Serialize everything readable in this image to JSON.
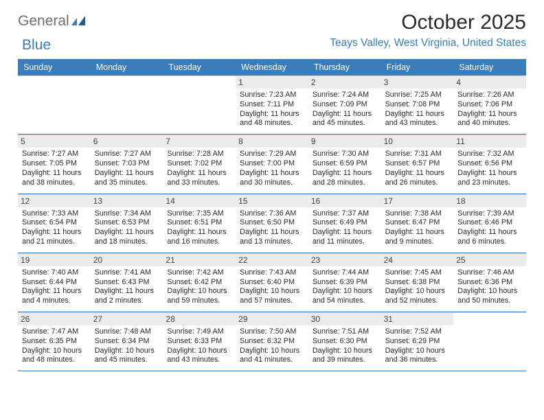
{
  "brand": {
    "text1": "General",
    "text2": "Blue"
  },
  "title": "October 2025",
  "location": "Teays Valley, West Virginia, United States",
  "colors": {
    "accent": "#3a7db8",
    "header_text": "#ffffff",
    "grid_border": "#3a7db8",
    "cell_sep": "#cfcfcf",
    "daynum_bg": "#ececec",
    "body_text": "#2a2a2a",
    "logo_gray": "#6f6f6f"
  },
  "day_names": [
    "Sunday",
    "Monday",
    "Tuesday",
    "Wednesday",
    "Thursday",
    "Friday",
    "Saturday"
  ],
  "weeks": [
    [
      null,
      null,
      null,
      {
        "n": "1",
        "sr": "Sunrise: 7:23 AM",
        "ss": "Sunset: 7:11 PM",
        "d1": "Daylight: 11 hours",
        "d2": "and 48 minutes."
      },
      {
        "n": "2",
        "sr": "Sunrise: 7:24 AM",
        "ss": "Sunset: 7:09 PM",
        "d1": "Daylight: 11 hours",
        "d2": "and 45 minutes."
      },
      {
        "n": "3",
        "sr": "Sunrise: 7:25 AM",
        "ss": "Sunset: 7:08 PM",
        "d1": "Daylight: 11 hours",
        "d2": "and 43 minutes."
      },
      {
        "n": "4",
        "sr": "Sunrise: 7:26 AM",
        "ss": "Sunset: 7:06 PM",
        "d1": "Daylight: 11 hours",
        "d2": "and 40 minutes."
      }
    ],
    [
      {
        "n": "5",
        "sr": "Sunrise: 7:27 AM",
        "ss": "Sunset: 7:05 PM",
        "d1": "Daylight: 11 hours",
        "d2": "and 38 minutes."
      },
      {
        "n": "6",
        "sr": "Sunrise: 7:27 AM",
        "ss": "Sunset: 7:03 PM",
        "d1": "Daylight: 11 hours",
        "d2": "and 35 minutes."
      },
      {
        "n": "7",
        "sr": "Sunrise: 7:28 AM",
        "ss": "Sunset: 7:02 PM",
        "d1": "Daylight: 11 hours",
        "d2": "and 33 minutes."
      },
      {
        "n": "8",
        "sr": "Sunrise: 7:29 AM",
        "ss": "Sunset: 7:00 PM",
        "d1": "Daylight: 11 hours",
        "d2": "and 30 minutes."
      },
      {
        "n": "9",
        "sr": "Sunrise: 7:30 AM",
        "ss": "Sunset: 6:59 PM",
        "d1": "Daylight: 11 hours",
        "d2": "and 28 minutes."
      },
      {
        "n": "10",
        "sr": "Sunrise: 7:31 AM",
        "ss": "Sunset: 6:57 PM",
        "d1": "Daylight: 11 hours",
        "d2": "and 26 minutes."
      },
      {
        "n": "11",
        "sr": "Sunrise: 7:32 AM",
        "ss": "Sunset: 6:56 PM",
        "d1": "Daylight: 11 hours",
        "d2": "and 23 minutes."
      }
    ],
    [
      {
        "n": "12",
        "sr": "Sunrise: 7:33 AM",
        "ss": "Sunset: 6:54 PM",
        "d1": "Daylight: 11 hours",
        "d2": "and 21 minutes."
      },
      {
        "n": "13",
        "sr": "Sunrise: 7:34 AM",
        "ss": "Sunset: 6:53 PM",
        "d1": "Daylight: 11 hours",
        "d2": "and 18 minutes."
      },
      {
        "n": "14",
        "sr": "Sunrise: 7:35 AM",
        "ss": "Sunset: 6:51 PM",
        "d1": "Daylight: 11 hours",
        "d2": "and 16 minutes."
      },
      {
        "n": "15",
        "sr": "Sunrise: 7:36 AM",
        "ss": "Sunset: 6:50 PM",
        "d1": "Daylight: 11 hours",
        "d2": "and 13 minutes."
      },
      {
        "n": "16",
        "sr": "Sunrise: 7:37 AM",
        "ss": "Sunset: 6:49 PM",
        "d1": "Daylight: 11 hours",
        "d2": "and 11 minutes."
      },
      {
        "n": "17",
        "sr": "Sunrise: 7:38 AM",
        "ss": "Sunset: 6:47 PM",
        "d1": "Daylight: 11 hours",
        "d2": "and 9 minutes."
      },
      {
        "n": "18",
        "sr": "Sunrise: 7:39 AM",
        "ss": "Sunset: 6:46 PM",
        "d1": "Daylight: 11 hours",
        "d2": "and 6 minutes."
      }
    ],
    [
      {
        "n": "19",
        "sr": "Sunrise: 7:40 AM",
        "ss": "Sunset: 6:44 PM",
        "d1": "Daylight: 11 hours",
        "d2": "and 4 minutes."
      },
      {
        "n": "20",
        "sr": "Sunrise: 7:41 AM",
        "ss": "Sunset: 6:43 PM",
        "d1": "Daylight: 11 hours",
        "d2": "and 2 minutes."
      },
      {
        "n": "21",
        "sr": "Sunrise: 7:42 AM",
        "ss": "Sunset: 6:42 PM",
        "d1": "Daylight: 10 hours",
        "d2": "and 59 minutes."
      },
      {
        "n": "22",
        "sr": "Sunrise: 7:43 AM",
        "ss": "Sunset: 6:40 PM",
        "d1": "Daylight: 10 hours",
        "d2": "and 57 minutes."
      },
      {
        "n": "23",
        "sr": "Sunrise: 7:44 AM",
        "ss": "Sunset: 6:39 PM",
        "d1": "Daylight: 10 hours",
        "d2": "and 54 minutes."
      },
      {
        "n": "24",
        "sr": "Sunrise: 7:45 AM",
        "ss": "Sunset: 6:38 PM",
        "d1": "Daylight: 10 hours",
        "d2": "and 52 minutes."
      },
      {
        "n": "25",
        "sr": "Sunrise: 7:46 AM",
        "ss": "Sunset: 6:36 PM",
        "d1": "Daylight: 10 hours",
        "d2": "and 50 minutes."
      }
    ],
    [
      {
        "n": "26",
        "sr": "Sunrise: 7:47 AM",
        "ss": "Sunset: 6:35 PM",
        "d1": "Daylight: 10 hours",
        "d2": "and 48 minutes."
      },
      {
        "n": "27",
        "sr": "Sunrise: 7:48 AM",
        "ss": "Sunset: 6:34 PM",
        "d1": "Daylight: 10 hours",
        "d2": "and 45 minutes."
      },
      {
        "n": "28",
        "sr": "Sunrise: 7:49 AM",
        "ss": "Sunset: 6:33 PM",
        "d1": "Daylight: 10 hours",
        "d2": "and 43 minutes."
      },
      {
        "n": "29",
        "sr": "Sunrise: 7:50 AM",
        "ss": "Sunset: 6:32 PM",
        "d1": "Daylight: 10 hours",
        "d2": "and 41 minutes."
      },
      {
        "n": "30",
        "sr": "Sunrise: 7:51 AM",
        "ss": "Sunset: 6:30 PM",
        "d1": "Daylight: 10 hours",
        "d2": "and 39 minutes."
      },
      {
        "n": "31",
        "sr": "Sunrise: 7:52 AM",
        "ss": "Sunset: 6:29 PM",
        "d1": "Daylight: 10 hours",
        "d2": "and 36 minutes."
      },
      null
    ]
  ]
}
